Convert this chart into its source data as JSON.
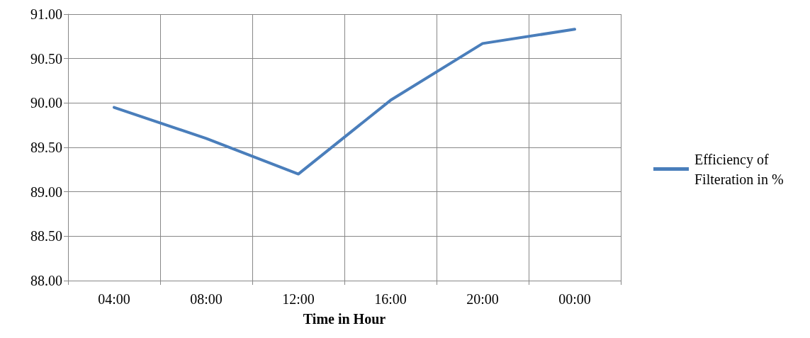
{
  "chart_data": {
    "type": "line",
    "xlabel": "Time in Hour",
    "categories": [
      "04:00",
      "08:00",
      "12:00",
      "16:00",
      "20:00",
      "00:00"
    ],
    "series": [
      {
        "name": "Efficiency of Filteration in %",
        "color": "#4a7ebb",
        "values": [
          89.95,
          89.6,
          89.2,
          90.03,
          90.67,
          90.83
        ]
      }
    ],
    "ylim": [
      88,
      91
    ],
    "yticks": [
      {
        "value": 88,
        "label": "88.00"
      },
      {
        "value": 88.5,
        "label": "88.50"
      },
      {
        "value": 89,
        "label": "89.00"
      },
      {
        "value": 89.5,
        "label": "89.50"
      },
      {
        "value": 90,
        "label": "90.00"
      },
      {
        "value": 90.5,
        "label": "90.50"
      },
      {
        "value": 91,
        "label": "91.00"
      }
    ],
    "grid": true,
    "legend": "right",
    "marker": "none",
    "line_style": "solid"
  }
}
